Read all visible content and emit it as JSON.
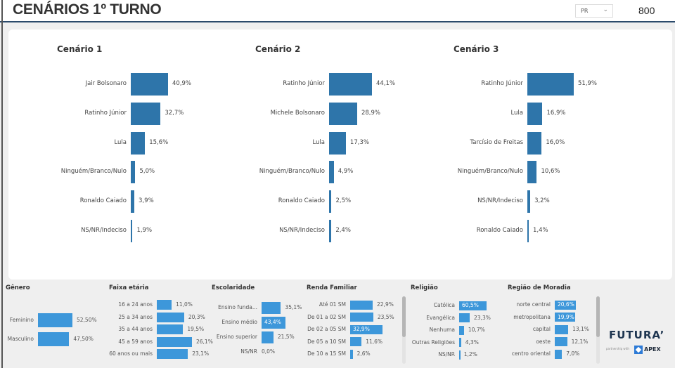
{
  "header": {
    "title": "CENÁRIOS 1º TURNO",
    "state_select": "PR",
    "sample_count": "800"
  },
  "scenarios": [
    {
      "title": "Cenário 1",
      "items": [
        {
          "label": "Jair Bolsonaro",
          "value": "40,9%",
          "v": 40.9
        },
        {
          "label": "Ratinho Júnior",
          "value": "32,7%",
          "v": 32.7
        },
        {
          "label": "Lula",
          "value": "15,6%",
          "v": 15.6
        },
        {
          "label": "Ninguém/Branco/Nulo",
          "value": "5,0%",
          "v": 5.0
        },
        {
          "label": "Ronaldo Caiado",
          "value": "3,9%",
          "v": 3.9
        },
        {
          "label": "NS/NR/Indeciso",
          "value": "1,9%",
          "v": 1.9
        }
      ]
    },
    {
      "title": "Cenário 2",
      "items": [
        {
          "label": "Ratinho Júnior",
          "value": "44,1%",
          "v": 44.1
        },
        {
          "label": "Michele Bolsonaro",
          "value": "28,9%",
          "v": 28.9
        },
        {
          "label": "Lula",
          "value": "17,3%",
          "v": 17.3
        },
        {
          "label": "Ninguém/Branco/Nulo",
          "value": "4,9%",
          "v": 4.9
        },
        {
          "label": "Ronaldo Caiado",
          "value": "2,5%",
          "v": 2.5
        },
        {
          "label": "NS/NR/Indeciso",
          "value": "2,4%",
          "v": 2.4
        }
      ]
    },
    {
      "title": "Cenário 3",
      "items": [
        {
          "label": "Ratinho Júnior",
          "value": "51,9%",
          "v": 51.9
        },
        {
          "label": "Lula",
          "value": "16,9%",
          "v": 16.9
        },
        {
          "label": "Tarcísio de Freitas",
          "value": "16,0%",
          "v": 16.0
        },
        {
          "label": "Ninguém/Branco/Nulo",
          "value": "10,6%",
          "v": 10.6
        },
        {
          "label": "NS/NR/Indeciso",
          "value": "3,2%",
          "v": 3.2
        },
        {
          "label": "Ronaldo Caiado",
          "value": "1,4%",
          "v": 1.4
        }
      ]
    }
  ],
  "demographics": [
    {
      "title": "Gênero",
      "items": [
        {
          "label": "Feminino",
          "value": "52,50%",
          "v": 52.5
        },
        {
          "label": "Masculino",
          "value": "47,50%",
          "v": 47.5
        }
      ]
    },
    {
      "title": "Faixa etária",
      "items": [
        {
          "label": "16 a 24 anos",
          "value": "11,0%",
          "v": 11.0
        },
        {
          "label": "25 a 34 anos",
          "value": "20,3%",
          "v": 20.3
        },
        {
          "label": "35 a 44 anos",
          "value": "19,5%",
          "v": 19.5
        },
        {
          "label": "45 a 59 anos",
          "value": "26,1%",
          "v": 26.1
        },
        {
          "label": "60 anos ou mais",
          "value": "23,1%",
          "v": 23.1
        }
      ]
    },
    {
      "title": "Escolaridade",
      "items": [
        {
          "label": "Ensino funda...",
          "value": "35,1%",
          "v": 35.1
        },
        {
          "label": "Ensino médio",
          "value": "43,4%",
          "v": 43.4
        },
        {
          "label": "Ensino superior",
          "value": "21,5%",
          "v": 21.5
        },
        {
          "label": "NS/NR",
          "value": "0,0%",
          "v": 0.0
        }
      ]
    },
    {
      "title": "Renda Familiar",
      "items": [
        {
          "label": "Até 01 SM",
          "value": "22,9%",
          "v": 22.9
        },
        {
          "label": "De 01 a 02 SM",
          "value": "23,5%",
          "v": 23.5
        },
        {
          "label": "De 02 a 05 SM",
          "value": "32,9%",
          "v": 32.9
        },
        {
          "label": "De 05 a 10 SM",
          "value": "11,6%",
          "v": 11.6
        },
        {
          "label": "De 10 a 15 SM",
          "value": "2,6%",
          "v": 2.6
        }
      ]
    },
    {
      "title": "Religião",
      "items": [
        {
          "label": "Católica",
          "value": "60,5%",
          "v": 60.5
        },
        {
          "label": "Evangélica",
          "value": "23,3%",
          "v": 23.3
        },
        {
          "label": "Nenhuma",
          "value": "10,7%",
          "v": 10.7
        },
        {
          "label": "Outras Religiões",
          "value": "4,3%",
          "v": 4.3
        },
        {
          "label": "NS/NR",
          "value": "1,2%",
          "v": 1.2
        }
      ]
    },
    {
      "title": "Região de Moradia",
      "items": [
        {
          "label": "norte central",
          "value": "20,6%",
          "v": 20.6
        },
        {
          "label": "metropolitana",
          "value": "19,9%",
          "v": 19.9
        },
        {
          "label": "capital",
          "value": "13,1%",
          "v": 13.1
        },
        {
          "label": "oeste",
          "value": "12,1%",
          "v": 12.1
        },
        {
          "label": "centro oriental",
          "value": "7,0%",
          "v": 7.0
        }
      ]
    }
  ],
  "branding": {
    "logo": "FUTURA’",
    "partnership": "partnership with",
    "partner": "APEX"
  },
  "colors": {
    "scenario_bar": "#2e75aa",
    "demo_bar": "#3d97da",
    "header_line": "#2b4a6b"
  }
}
